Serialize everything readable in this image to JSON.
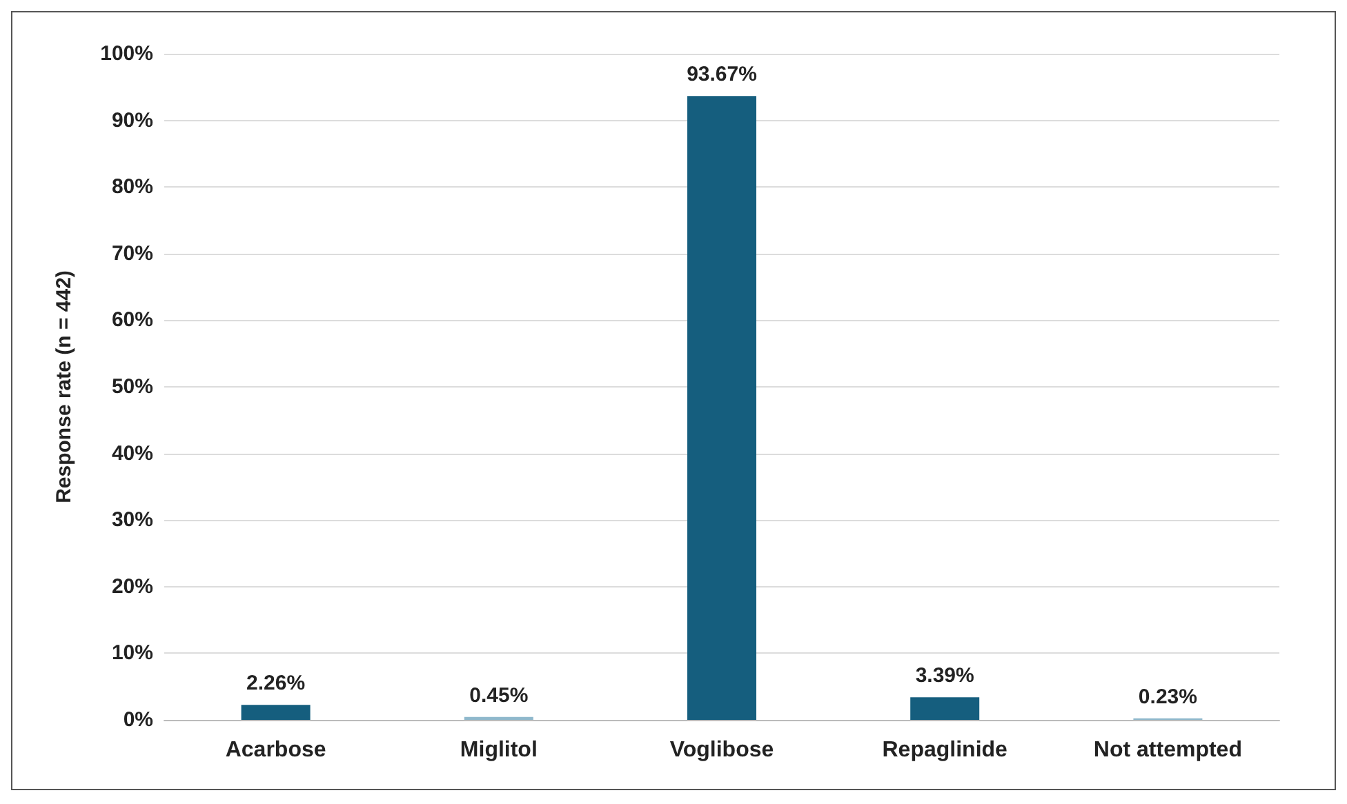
{
  "chart_data": {
    "type": "bar",
    "ylabel": "Response rate (n = 442)",
    "categories": [
      "Acarbose",
      "Miglitol",
      "Voglibose",
      "Repaglinide",
      "Not attempted"
    ],
    "values": [
      2.26,
      0.45,
      93.67,
      3.39,
      0.23
    ],
    "colors": [
      "#155e7e",
      "#8fb8cc",
      "#155e7e",
      "#155e7e",
      "#8fb8cc"
    ],
    "value_labels": [
      "2.26%",
      "0.45%",
      "93.67%",
      "3.39%",
      "0.23%"
    ],
    "ylim": [
      0,
      100
    ],
    "yticks": [
      {
        "value": 0,
        "label": "0%"
      },
      {
        "value": 10,
        "label": "10%"
      },
      {
        "value": 20,
        "label": "20%"
      },
      {
        "value": 30,
        "label": "30%"
      },
      {
        "value": 40,
        "label": "40%"
      },
      {
        "value": 50,
        "label": "50%"
      },
      {
        "value": 60,
        "label": "60%"
      },
      {
        "value": 70,
        "label": "70%"
      },
      {
        "value": 80,
        "label": "80%"
      },
      {
        "value": 90,
        "label": "90%"
      },
      {
        "value": 100,
        "label": "100%"
      }
    ],
    "grid": "y"
  }
}
